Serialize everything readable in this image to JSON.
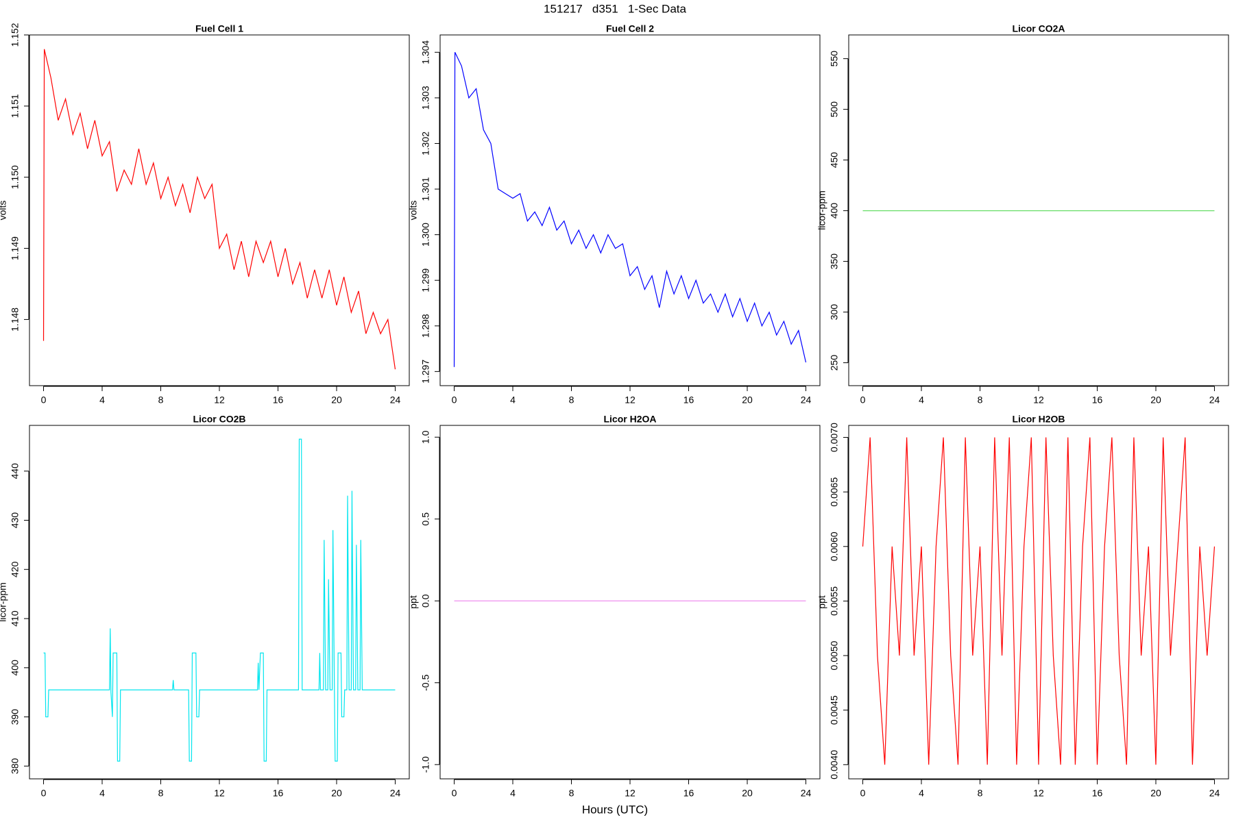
{
  "title": "151217   d351   1-Sec Data",
  "x_label": "Hours (UTC)",
  "chart_data": [
    {
      "type": "line",
      "title": "Fuel Cell 1",
      "y_label": "volts",
      "xlim": [
        -0.96,
        24.96
      ],
      "xticks": [
        0,
        4,
        8,
        12,
        16,
        20,
        24
      ],
      "ylim": [
        1.14707,
        1.152
      ],
      "yticks": [
        1.148,
        1.149,
        {
          "value": 1.15,
          "label": "1.150"
        },
        1.151,
        1.152
      ],
      "x": [
        0,
        0.05,
        0.5,
        1,
        1.5,
        2,
        2.5,
        3,
        3.5,
        4,
        4.5,
        5,
        5.5,
        6,
        6.5,
        7,
        7.5,
        8,
        8.5,
        9,
        9.5,
        10,
        10.5,
        11,
        11.5,
        12,
        12.5,
        13,
        13.5,
        14,
        14.5,
        15,
        15.5,
        16,
        16.5,
        17,
        17.5,
        18,
        18.5,
        19,
        19.5,
        20,
        20.5,
        21,
        21.5,
        22,
        22.5,
        23,
        23.5,
        24
      ],
      "series": [
        {
          "color": "#ff0000",
          "values": [
            1.1477,
            1.1518,
            1.1514,
            1.1508,
            1.1511,
            1.1506,
            1.1509,
            1.1504,
            1.1508,
            1.1503,
            1.1505,
            1.1498,
            1.1501,
            1.1499,
            1.1504,
            1.1499,
            1.1502,
            1.1497,
            1.15,
            1.1496,
            1.1499,
            1.1495,
            1.15,
            1.1497,
            1.1499,
            1.149,
            1.1492,
            1.1487,
            1.1491,
            1.1486,
            1.1491,
            1.1488,
            1.1491,
            1.1486,
            1.149,
            1.1485,
            1.1488,
            1.1483,
            1.1487,
            1.1483,
            1.1487,
            1.1482,
            1.1486,
            1.1481,
            1.1484,
            1.1478,
            1.1481,
            1.1478,
            1.148,
            1.1473
          ]
        }
      ]
    },
    {
      "type": "line",
      "title": "Fuel Cell 2",
      "y_label": "volts",
      "xlim": [
        -0.96,
        24.96
      ],
      "xticks": [
        0,
        4,
        8,
        12,
        16,
        20,
        24
      ],
      "ylim": [
        1.29669,
        1.30438
      ],
      "yticks": [
        1.297,
        1.298,
        1.299,
        {
          "value": 1.3,
          "label": "1.300"
        },
        1.301,
        1.302,
        1.303,
        1.304
      ],
      "x": [
        0,
        0.05,
        0.5,
        1,
        1.5,
        2,
        2.5,
        3,
        3.5,
        4,
        4.5,
        5,
        5.5,
        6,
        6.5,
        7,
        7.5,
        8,
        8.5,
        9,
        9.5,
        10,
        10.5,
        11,
        11.5,
        12,
        12.5,
        13,
        13.5,
        14,
        14.5,
        15,
        15.5,
        16,
        16.5,
        17,
        17.5,
        18,
        18.5,
        19,
        19.5,
        20,
        20.5,
        21,
        21.5,
        22,
        22.5,
        23,
        23.5,
        24
      ],
      "series": [
        {
          "color": "#0000ff",
          "values": [
            1.2971,
            1.304,
            1.3037,
            1.303,
            1.3032,
            1.3023,
            1.302,
            1.301,
            1.3009,
            1.3008,
            1.3009,
            1.3003,
            1.3005,
            1.3002,
            1.3006,
            1.3001,
            1.3003,
            1.2998,
            1.3001,
            1.2997,
            1.3,
            1.2996,
            1.3,
            1.2997,
            1.2998,
            1.2991,
            1.2993,
            1.2988,
            1.2991,
            1.2984,
            1.2992,
            1.2987,
            1.2991,
            1.2986,
            1.299,
            1.2985,
            1.2987,
            1.2983,
            1.2987,
            1.2982,
            1.2986,
            1.2981,
            1.2985,
            1.298,
            1.2983,
            1.2978,
            1.2981,
            1.2976,
            1.2979,
            1.2972
          ]
        }
      ]
    },
    {
      "type": "line",
      "title": "Licor CO2A",
      "y_label": "licor-ppm",
      "xlim": [
        -0.96,
        24.96
      ],
      "xticks": [
        0,
        4,
        8,
        12,
        16,
        20,
        24
      ],
      "ylim": [
        227.4,
        573.4
      ],
      "yticks": [
        250,
        300,
        350,
        400,
        450,
        500,
        550
      ],
      "x": [
        0,
        24
      ],
      "series": [
        {
          "color": "#66dd66",
          "values": [
            400,
            400
          ]
        }
      ]
    },
    {
      "type": "line",
      "title": "Licor CO2B",
      "y_label": "licor-ppm",
      "xlim": [
        -0.96,
        24.96
      ],
      "xticks": [
        0,
        4,
        8,
        12,
        16,
        20,
        24
      ],
      "ylim": [
        377.4,
        449.3
      ],
      "yticks": [
        380,
        390,
        400,
        410,
        420,
        430,
        440
      ],
      "x": [
        0,
        0.1,
        0.15,
        0.3,
        0.35,
        4.5,
        4.55,
        4.6,
        4.7,
        4.75,
        5.0,
        5.05,
        5.2,
        5.25,
        8.8,
        8.85,
        8.9,
        9.9,
        9.95,
        10.1,
        10.15,
        10.4,
        10.45,
        10.6,
        10.65,
        14.6,
        14.65,
        14.7,
        14.8,
        15.0,
        15.05,
        15.2,
        15.25,
        17.4,
        17.45,
        17.6,
        17.65,
        18.8,
        18.85,
        18.9,
        19.1,
        19.15,
        19.25,
        19.4,
        19.45,
        19.55,
        19.7,
        19.75,
        19.85,
        19.9,
        20.05,
        20.1,
        20.3,
        20.35,
        20.5,
        20.55,
        20.7,
        20.75,
        20.85,
        21.0,
        21.05,
        21.15,
        21.3,
        21.35,
        21.45,
        21.6,
        21.65,
        21.75,
        24
      ],
      "series": [
        {
          "color": "#00e5ee",
          "values": [
            403,
            403,
            390,
            390,
            395.5,
            395.5,
            408,
            395,
            390,
            403,
            403,
            381,
            381,
            395.5,
            395.5,
            397.5,
            395.5,
            395.5,
            381,
            381,
            403,
            403,
            390,
            390,
            395.5,
            395.5,
            401,
            395.5,
            403,
            403,
            381,
            381,
            395.5,
            395.5,
            446.5,
            446.5,
            395.5,
            395.5,
            403,
            395.5,
            395.5,
            426,
            395.5,
            395.5,
            418,
            395.5,
            395.5,
            428,
            395.5,
            381,
            381,
            403,
            403,
            390,
            390,
            395.5,
            395.5,
            435,
            395.5,
            395.5,
            436,
            395.5,
            395.5,
            425,
            395.5,
            395.5,
            426,
            395.5,
            395.5
          ]
        }
      ]
    },
    {
      "type": "line",
      "title": "Licor H2OA",
      "y_label": "ppt",
      "xlim": [
        -0.96,
        24.96
      ],
      "xticks": [
        0,
        4,
        8,
        12,
        16,
        20,
        24
      ],
      "ylim": [
        -1.087,
        1.072
      ],
      "yticks": [
        {
          "value": -1,
          "label": "-1.0"
        },
        -0.5,
        {
          "value": 0,
          "label": "0.0"
        },
        0.5,
        {
          "value": 1,
          "label": "1.0"
        }
      ],
      "x": [
        0,
        24
      ],
      "series": [
        {
          "color": "#ee82ee",
          "values": [
            0,
            0
          ]
        }
      ]
    },
    {
      "type": "line",
      "title": "Licor H2OB",
      "y_label": "ppt",
      "xlim": [
        -0.96,
        24.96
      ],
      "xticks": [
        0,
        4,
        8,
        12,
        16,
        20,
        24
      ],
      "ylim": [
        0.00387,
        0.00711
      ],
      "yticks": [
        {
          "value": 0.004,
          "label": "0.0040"
        },
        0.0045,
        {
          "value": 0.005,
          "label": "0.0050"
        },
        0.0055,
        {
          "value": 0.006,
          "label": "0.0060"
        },
        0.0065,
        {
          "value": 0.007,
          "label": "0.0070"
        }
      ],
      "x": [
        0,
        0.5,
        1,
        1.5,
        2,
        2.5,
        3,
        3.5,
        4,
        4.5,
        5,
        5.5,
        6,
        6.5,
        7,
        7.5,
        8,
        8.5,
        9,
        9.5,
        10,
        10.5,
        11,
        11.5,
        12,
        12.5,
        13,
        13.5,
        14,
        14.5,
        15,
        15.5,
        16,
        16.5,
        17,
        17.5,
        18,
        18.5,
        19,
        19.5,
        20,
        20.5,
        21,
        21.5,
        22,
        22.5,
        23,
        23.5,
        24
      ],
      "series": [
        {
          "color": "#ff0000",
          "values": [
            0.006,
            0.007,
            0.005,
            0.004,
            0.006,
            0.005,
            0.007,
            0.005,
            0.006,
            0.004,
            0.006,
            0.007,
            0.005,
            0.004,
            0.007,
            0.005,
            0.006,
            0.004,
            0.007,
            0.005,
            0.007,
            0.004,
            0.006,
            0.007,
            0.004,
            0.007,
            0.005,
            0.004,
            0.007,
            0.004,
            0.006,
            0.007,
            0.004,
            0.006,
            0.007,
            0.005,
            0.004,
            0.007,
            0.005,
            0.006,
            0.004,
            0.007,
            0.005,
            0.006,
            0.007,
            0.004,
            0.006,
            0.005,
            0.006
          ]
        }
      ]
    }
  ]
}
